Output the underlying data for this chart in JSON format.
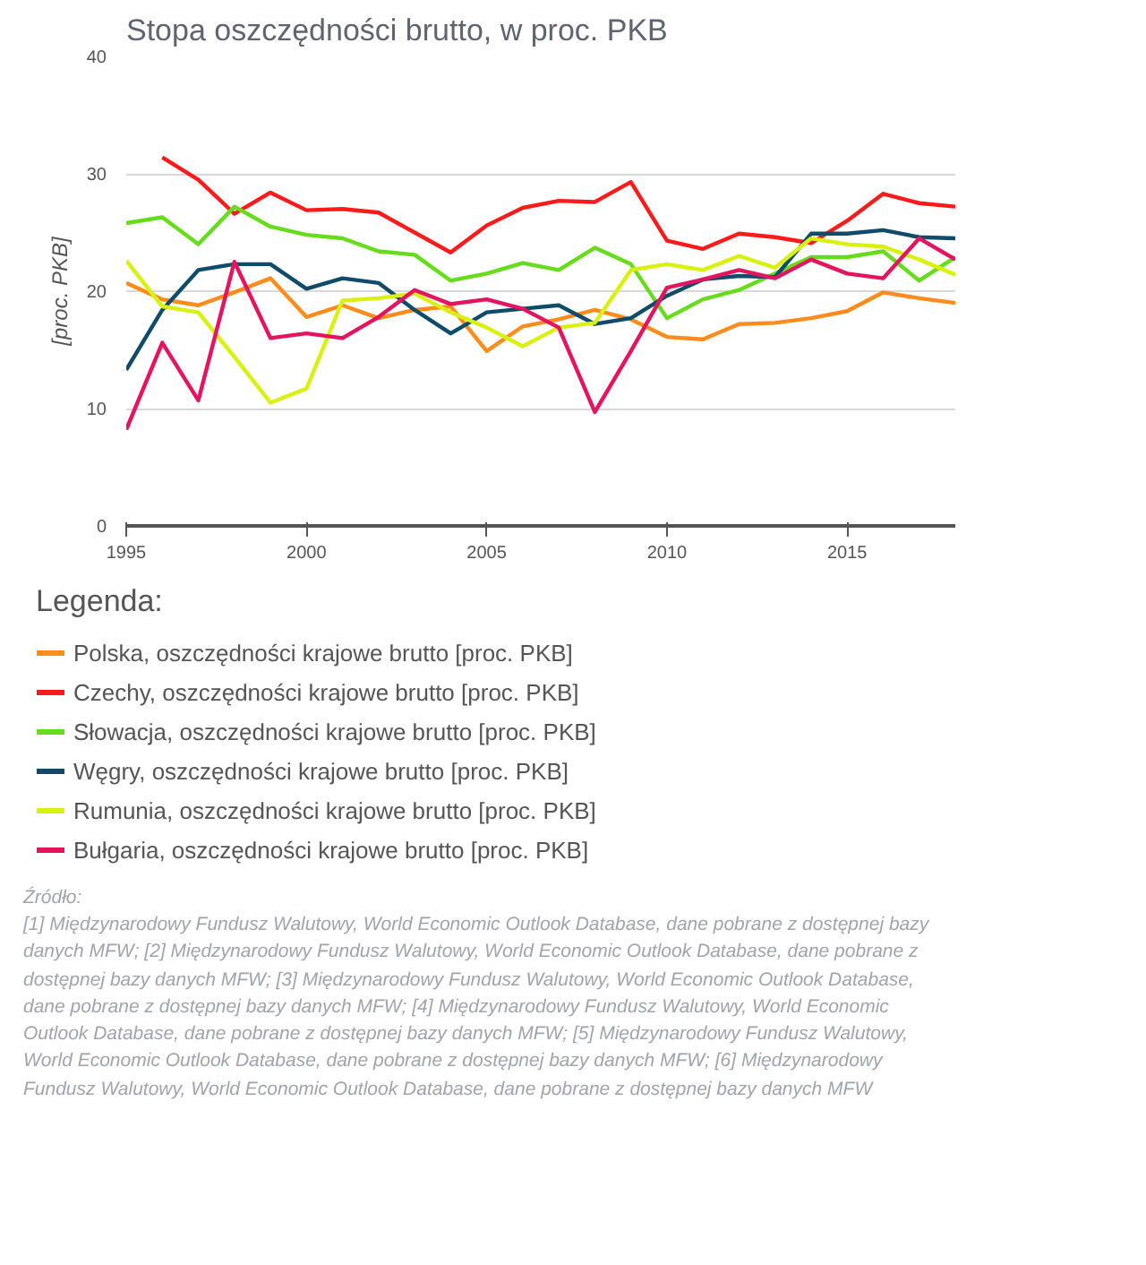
{
  "chart_data": {
    "type": "line",
    "title": "Stopa oszczędności brutto, w proc. PKB",
    "ylabel": "[proc. PKB]",
    "legend_title": "Legenda:",
    "x": [
      1995,
      1996,
      1997,
      1998,
      1999,
      2000,
      2001,
      2002,
      2003,
      2004,
      2005,
      2006,
      2007,
      2008,
      2009,
      2010,
      2011,
      2012,
      2013,
      2014,
      2015,
      2016,
      2017,
      2018
    ],
    "xlim": [
      1995,
      2018
    ],
    "xticks": [
      1995,
      2000,
      2005,
      2010,
      2015
    ],
    "ylim": [
      0,
      40
    ],
    "yticks": [
      0,
      10,
      20,
      30,
      40
    ],
    "grid": "y",
    "legend": "bottom",
    "marker": "none",
    "line_style": "solid",
    "series": [
      {
        "name": "Polska, oszczędności krajowe brutto [proc. PKB]",
        "color": "#ff8c1a",
        "values": [
          20.7,
          19.3,
          18.8,
          19.9,
          21.1,
          17.8,
          18.8,
          17.7,
          18.4,
          18.7,
          14.9,
          17.0,
          17.6,
          18.4,
          17.6,
          16.1,
          15.9,
          17.2,
          17.3,
          17.7,
          18.3,
          19.9,
          19.4,
          19.0
        ]
      },
      {
        "name": "Czechy, oszczędności krajowe brutto [proc. PKB]",
        "color": "#ff1a1a",
        "values": [
          null,
          31.4,
          29.5,
          26.6,
          28.4,
          26.9,
          27.0,
          26.7,
          25.0,
          23.3,
          25.6,
          27.1,
          27.7,
          27.6,
          29.3,
          24.3,
          23.6,
          24.9,
          24.6,
          24.1,
          26.0,
          28.3,
          27.5,
          27.2
        ]
      },
      {
        "name": "Słowacja, oszczędności krajowe brutto [proc. PKB]",
        "color": "#66dd1a",
        "values": [
          25.8,
          26.3,
          24.0,
          27.2,
          25.5,
          24.8,
          24.5,
          23.4,
          23.1,
          20.9,
          21.5,
          22.4,
          21.8,
          23.7,
          22.3,
          17.7,
          19.3,
          20.1,
          21.5,
          22.9,
          22.9,
          23.4,
          20.9,
          22.9
        ]
      },
      {
        "name": "Węgry, oszczędności krajowe brutto [proc. PKB]",
        "color": "#0f4c6b",
        "values": [
          13.3,
          18.4,
          21.8,
          22.3,
          22.3,
          20.2,
          21.1,
          20.7,
          18.4,
          16.4,
          18.2,
          18.5,
          18.8,
          17.2,
          17.7,
          19.6,
          21.0,
          21.3,
          21.2,
          24.9,
          24.9,
          25.2,
          24.6,
          24.5
        ]
      },
      {
        "name": "Rumunia, oszczędności krajowe brutto [proc. PKB]",
        "color": "#d9f20d",
        "values": [
          22.6,
          18.7,
          18.2,
          14.4,
          10.5,
          11.7,
          19.2,
          19.4,
          19.8,
          18.2,
          16.9,
          15.3,
          16.9,
          17.3,
          21.8,
          22.3,
          21.8,
          23.0,
          22.0,
          24.5,
          24.0,
          23.8,
          22.7,
          21.4
        ]
      },
      {
        "name": "Bułgaria, oszczędności krajowe brutto [proc. PKB]",
        "color": "#e6135f",
        "values": [
          8.2,
          15.6,
          10.7,
          22.5,
          16.0,
          16.4,
          16.0,
          17.8,
          20.1,
          18.9,
          19.3,
          18.5,
          16.9,
          9.7,
          14.9,
          20.3,
          21.0,
          21.8,
          21.1,
          22.7,
          21.5,
          21.1,
          24.5,
          22.7
        ]
      }
    ],
    "annotations": [
      "Źródło:\n[1] Międzynarodowy Fundusz Walutowy, World Economic Outlook Database, dane pobrane z dostępnej bazy danych MFW; [2] Międzynarodowy Fundusz Walutowy, World Economic Outlook Database, dane pobrane z dostępnej bazy danych MFW; [3] Międzynarodowy Fundusz Walutowy, World Economic Outlook Database, dane pobrane z dostępnej bazy danych MFW; [4] Międzynarodowy Fundusz Walutowy, World Economic Outlook Database, dane pobrane z dostępnej bazy danych MFW; [5] Międzynarodowy Fundusz Walutowy, World Economic Outlook Database, dane pobrane z dostępnej bazy danych MFW; [6] Międzynarodowy Fundusz Walutowy, World Economic Outlook Database, dane pobrane z dostępnej bazy danych MFW"
    ]
  }
}
